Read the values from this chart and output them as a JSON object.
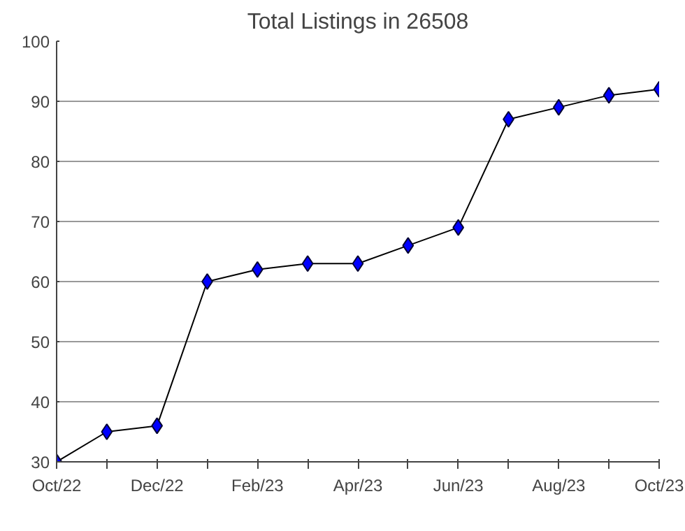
{
  "chart_data": {
    "type": "line",
    "title": "Total Listings in 26508",
    "categories": [
      "Oct/22",
      null,
      "Dec/22",
      null,
      "Feb/23",
      null,
      "Apr/23",
      null,
      "Jun/23",
      null,
      "Aug/23",
      null,
      "Oct/23"
    ],
    "series": [
      {
        "color": "#0000ff",
        "values": [
          30,
          35,
          36,
          60,
          62,
          63,
          63,
          66,
          69,
          87,
          89,
          91,
          92
        ]
      }
    ],
    "ylim": [
      30,
      100
    ],
    "yticks": [
      30,
      40,
      50,
      60,
      70,
      80,
      90,
      100
    ],
    "grid": "y",
    "marker": "diamond",
    "line_style": "solid"
  }
}
